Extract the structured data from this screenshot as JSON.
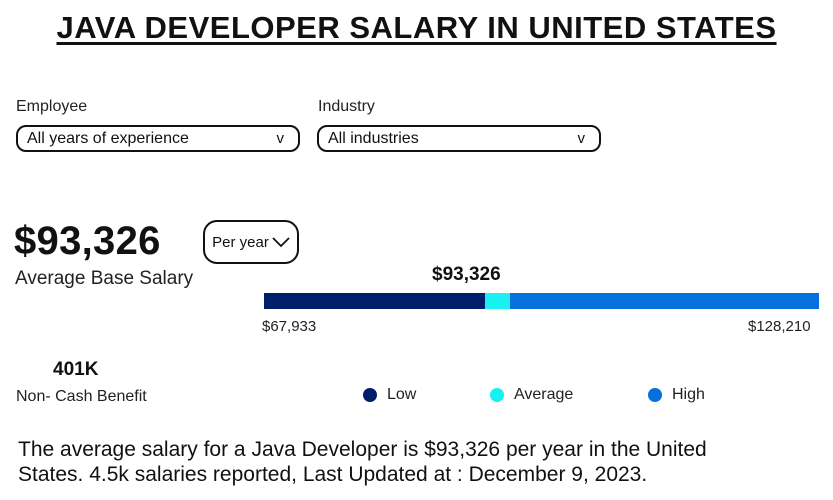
{
  "page": {
    "title": "JAVA  DEVELOPER  SALARY  IN  UNITED STATES"
  },
  "filters": {
    "employee": {
      "label": "Employee",
      "value": "All years of experience",
      "chevron": "v"
    },
    "industry": {
      "label": "Industry",
      "value": "All industries",
      "chevron": "v"
    }
  },
  "salary": {
    "amount": "$93,326",
    "caption": "Average Base Salary",
    "period": "Per year",
    "period_icon": "chevron-down-icon"
  },
  "range": {
    "marker_label": "$93,326",
    "min_label": "$67,933",
    "max_label": "$128,210",
    "min": 67933,
    "max": 128210,
    "average": 93326,
    "colors": {
      "low": "#001f6b",
      "average": "#19f0f0",
      "high": "#0670dd"
    }
  },
  "legend": {
    "items": [
      {
        "label": "Low",
        "color": "#001f6b"
      },
      {
        "label": "Average",
        "color": "#19f0f0"
      },
      {
        "label": "High",
        "color": "#0670dd"
      }
    ]
  },
  "benefit": {
    "value": "401K",
    "label": "Non- Cash Benefit"
  },
  "summary": {
    "line1": "The average salary for a Java Developer is $93,326 per year in the United",
    "line2": "States. 4.5k salaries reported, Last Updated at : December 9, 2023."
  }
}
